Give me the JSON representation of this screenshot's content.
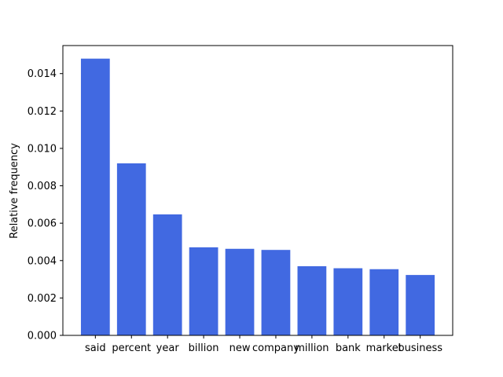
{
  "chart_data": {
    "type": "bar",
    "title": "",
    "xlabel": "",
    "ylabel": "Relative frequency",
    "categories": [
      "said",
      "percent",
      "year",
      "billion",
      "new",
      "company",
      "million",
      "bank",
      "market",
      "business"
    ],
    "values": [
      0.0148,
      0.0092,
      0.00647,
      0.00471,
      0.00463,
      0.00457,
      0.0037,
      0.00359,
      0.00354,
      0.00323
    ],
    "ylim": [
      0,
      0.0155
    ],
    "yticks": [
      "0.000",
      "0.002",
      "0.004",
      "0.006",
      "0.008",
      "0.010",
      "0.012",
      "0.014"
    ],
    "bar_color": "#4169e1",
    "grid": false,
    "legend": "none"
  }
}
